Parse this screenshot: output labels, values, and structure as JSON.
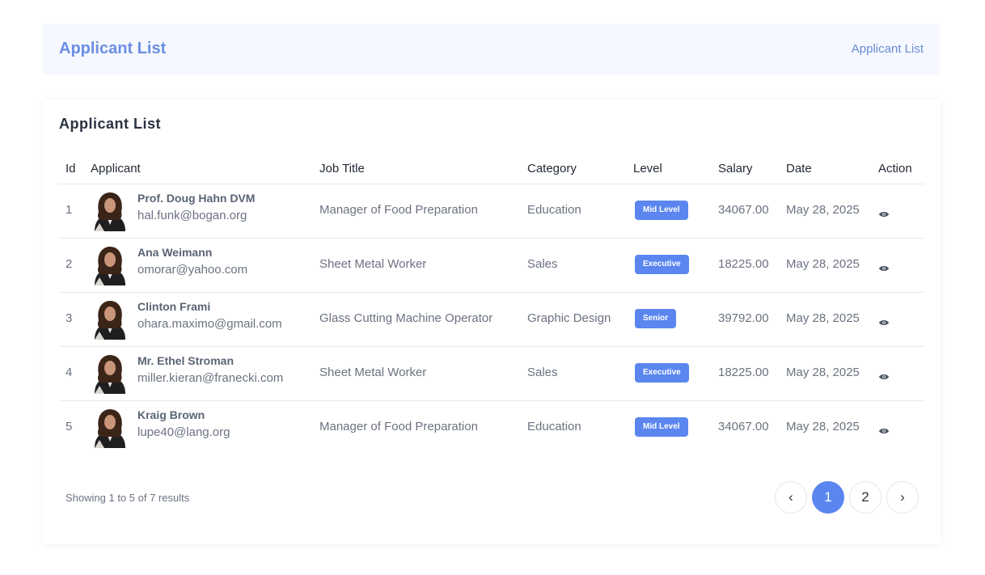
{
  "header": {
    "title": "Applicant List",
    "breadcrumb": "Applicant List"
  },
  "card": {
    "title": "Applicant List",
    "columns": [
      "Id",
      "Applicant",
      "Job Title",
      "Category",
      "Level",
      "Salary",
      "Date",
      "Action"
    ],
    "rows": [
      {
        "id": 1,
        "name": "Prof. Doug Hahn DVM",
        "email": "hal.funk@bogan.org",
        "job": "Manager of Food Preparation",
        "category": "Education",
        "level": "Mid Level",
        "salary": "34067.00",
        "date": "May 28, 2025"
      },
      {
        "id": 2,
        "name": "Ana Weimann",
        "email": "omorar@yahoo.com",
        "job": "Sheet Metal Worker",
        "category": "Sales",
        "level": "Executive",
        "salary": "18225.00",
        "date": "May 28, 2025"
      },
      {
        "id": 3,
        "name": "Clinton Frami",
        "email": "ohara.maximo@gmail.com",
        "job": "Glass Cutting Machine Operator",
        "category": "Graphic Design",
        "level": "Senior",
        "salary": "39792.00",
        "date": "May 28, 2025"
      },
      {
        "id": 4,
        "name": "Mr. Ethel Stroman",
        "email": "miller.kieran@franecki.com",
        "job": "Sheet Metal Worker",
        "category": "Sales",
        "level": "Executive",
        "salary": "18225.00",
        "date": "May 28, 2025"
      },
      {
        "id": 5,
        "name": "Kraig Brown",
        "email": "lupe40@lang.org",
        "job": "Manager of Food Preparation",
        "category": "Education",
        "level": "Mid Level",
        "salary": "34067.00",
        "date": "May 28, 2025"
      }
    ],
    "showing": "Showing 1 to 5 of 7 results",
    "pagination": {
      "prev": "‹",
      "pages": [
        "1",
        "2"
      ],
      "active": 0,
      "next": "›"
    }
  }
}
